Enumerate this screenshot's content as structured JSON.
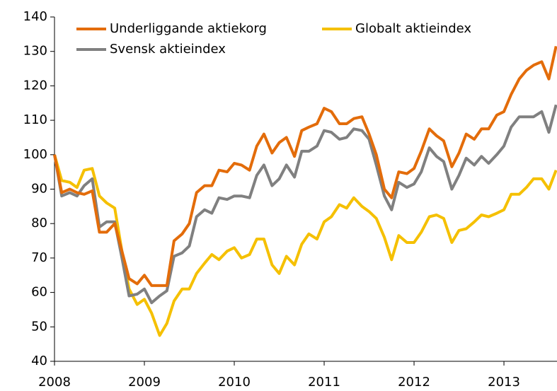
{
  "chart_data": {
    "type": "line",
    "x": [
      2008,
      2008.08,
      2008.17,
      2008.25,
      2008.33,
      2008.42,
      2008.5,
      2008.58,
      2008.67,
      2008.75,
      2008.83,
      2008.92,
      2009,
      2009.08,
      2009.17,
      2009.25,
      2009.33,
      2009.42,
      2009.5,
      2009.58,
      2009.67,
      2009.75,
      2009.83,
      2009.92,
      2010,
      2010.08,
      2010.17,
      2010.25,
      2010.33,
      2010.42,
      2010.5,
      2010.58,
      2010.67,
      2010.75,
      2010.83,
      2010.92,
      2011,
      2011.08,
      2011.17,
      2011.25,
      2011.33,
      2011.42,
      2011.5,
      2011.58,
      2011.67,
      2011.75,
      2011.83,
      2011.92,
      2012,
      2012.08,
      2012.17,
      2012.25,
      2012.33,
      2012.42,
      2012.5,
      2012.58,
      2012.67,
      2012.75,
      2012.83,
      2012.92,
      2013,
      2013.08,
      2013.17,
      2013.25,
      2013.33,
      2013.42,
      2013.5,
      2013.58
    ],
    "series": [
      {
        "name": "Underliggande aktiekorg",
        "color": "#e36c0a",
        "values": [
          100,
          89,
          90,
          89,
          88.5,
          89.5,
          77.5,
          77.5,
          80,
          72,
          64,
          62.5,
          65,
          62,
          62,
          62,
          75,
          77,
          80,
          89,
          91,
          91,
          95.5,
          95,
          97.5,
          97,
          95.5,
          102.5,
          106,
          100.5,
          103.5,
          105,
          99.5,
          107,
          108,
          109,
          113.5,
          112.5,
          109,
          109,
          110.5,
          111,
          106,
          100,
          90,
          87.5,
          95,
          94.5,
          96,
          101,
          107.5,
          105.5,
          104,
          96.5,
          100.5,
          106,
          104.5,
          107.5,
          107.5,
          111.5,
          112.5,
          117.5,
          122,
          124.5,
          126,
          127,
          122,
          131.5
        ]
      },
      {
        "name": "Globalt aktieindex",
        "color": "#f5c000",
        "values": [
          100,
          92.5,
          92,
          90.5,
          95.5,
          96,
          88,
          86,
          84.5,
          72,
          61,
          56.5,
          58,
          54,
          47.5,
          51,
          57.5,
          61,
          61,
          65.5,
          68.5,
          71,
          69.5,
          72,
          73,
          70,
          71,
          75.5,
          75.5,
          68,
          65.5,
          70.5,
          68,
          74,
          77,
          75.5,
          80.5,
          82,
          85.5,
          84.5,
          87.5,
          85,
          83.5,
          81.5,
          76,
          69.5,
          76.5,
          74.5,
          74.5,
          77.5,
          82,
          82.5,
          81.5,
          74.5,
          78,
          78.5,
          80.5,
          82.5,
          82,
          83,
          84,
          88.5,
          88.5,
          90.5,
          93,
          93,
          90,
          95.5
        ]
      },
      {
        "name": "Svensk aktieindex",
        "color": "#808080",
        "values": [
          100,
          88,
          89,
          88,
          91,
          93,
          79,
          80.5,
          80.5,
          70,
          59,
          59.5,
          61,
          57,
          59,
          60.5,
          70.5,
          71.5,
          73.5,
          82,
          84,
          83,
          87.5,
          87,
          88,
          88,
          87.5,
          94,
          97,
          91,
          93,
          97,
          93.5,
          101,
          101,
          102.5,
          107,
          106.5,
          104.5,
          105,
          107.5,
          107,
          104.5,
          97,
          88,
          84,
          92,
          90.5,
          91.5,
          95,
          102,
          99.5,
          98,
          90,
          94,
          99,
          97,
          99.5,
          97.5,
          100,
          102.5,
          108,
          111,
          111,
          111,
          112.5,
          106.5,
          114.5
        ]
      }
    ],
    "xlim": [
      2008,
      2013.58
    ],
    "xticks": [
      2008,
      2009,
      2010,
      2011,
      2012,
      2013
    ],
    "ylim": [
      40,
      140
    ],
    "yticks": [
      40,
      50,
      60,
      70,
      80,
      90,
      100,
      110,
      120,
      130,
      140
    ],
    "grid": false
  }
}
